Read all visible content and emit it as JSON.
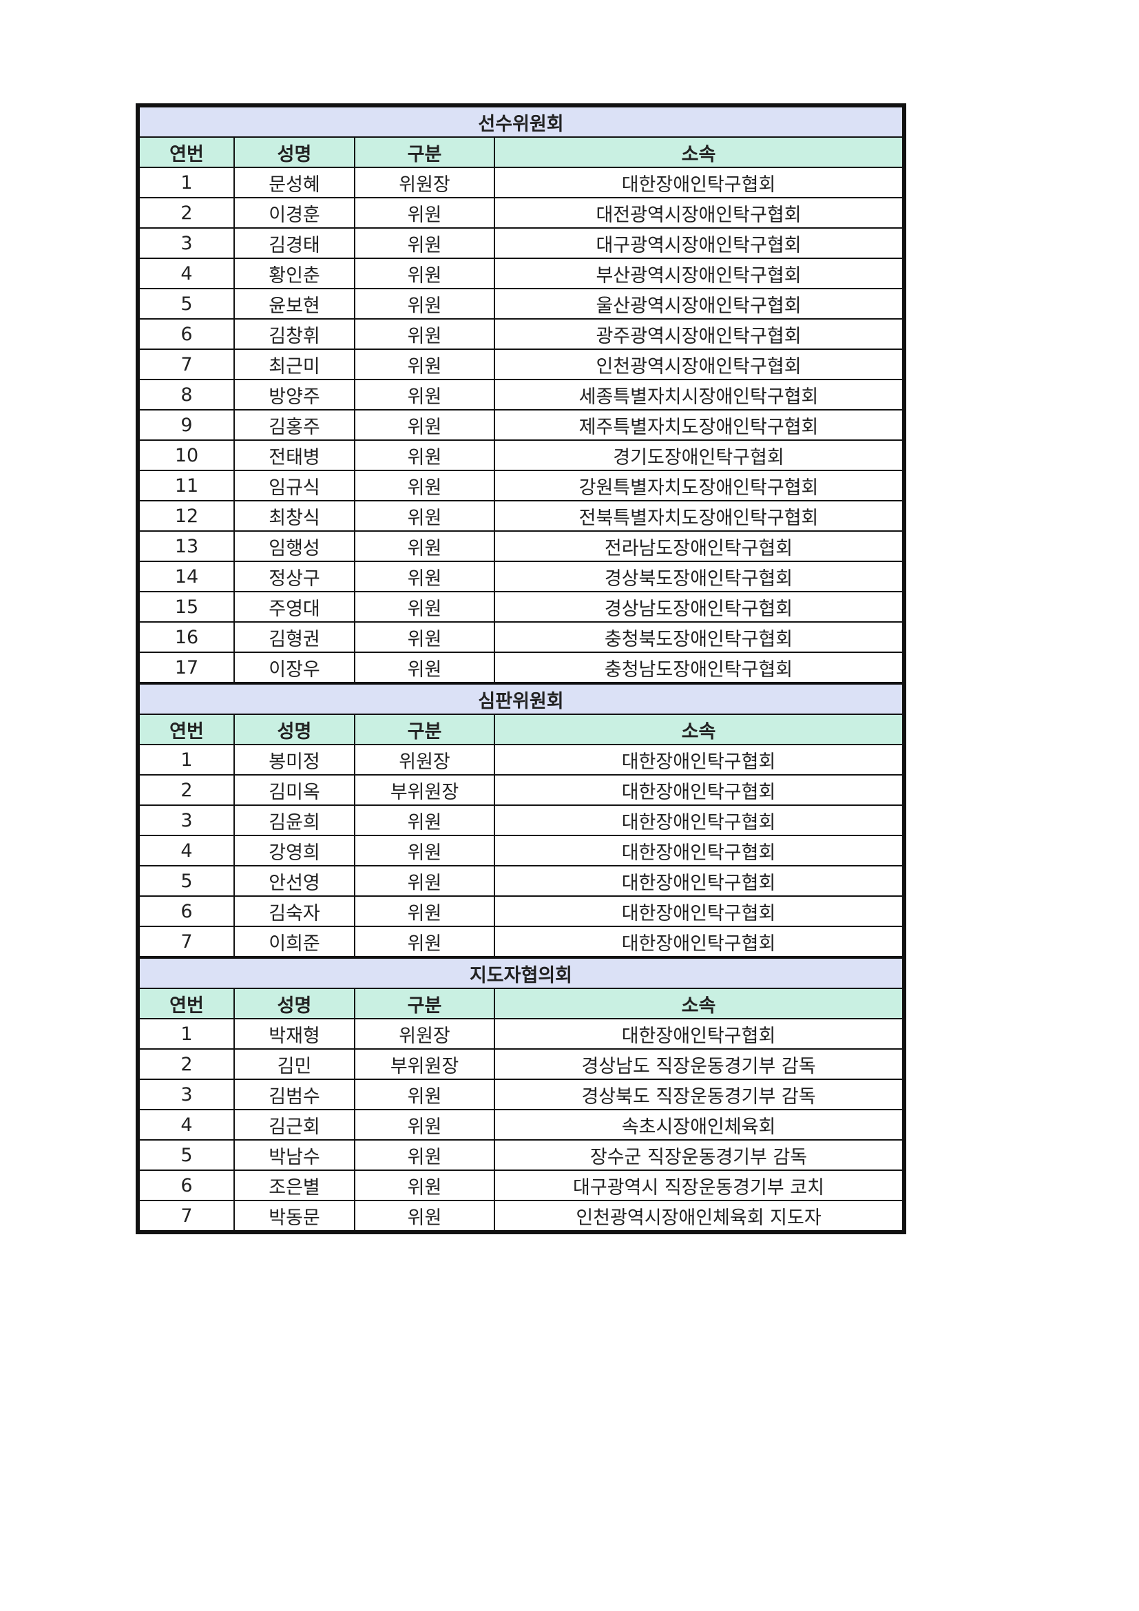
{
  "columns": [
    "연번",
    "성명",
    "구분",
    "소속"
  ],
  "sections": [
    {
      "title": "선수위원회",
      "rows": [
        [
          "1",
          "문성혜",
          "위원장",
          "대한장애인탁구협회"
        ],
        [
          "2",
          "이경훈",
          "위원",
          "대전광역시장애인탁구협회"
        ],
        [
          "3",
          "김경태",
          "위원",
          "대구광역시장애인탁구협회"
        ],
        [
          "4",
          "황인춘",
          "위원",
          "부산광역시장애인탁구협회"
        ],
        [
          "5",
          "윤보현",
          "위원",
          "울산광역시장애인탁구협회"
        ],
        [
          "6",
          "김창휘",
          "위원",
          "광주광역시장애인탁구협회"
        ],
        [
          "7",
          "최근미",
          "위원",
          "인천광역시장애인탁구협회"
        ],
        [
          "8",
          "방양주",
          "위원",
          "세종특별자치시장애인탁구협회"
        ],
        [
          "9",
          "김홍주",
          "위원",
          "제주특별자치도장애인탁구협회"
        ],
        [
          "10",
          "전태병",
          "위원",
          "경기도장애인탁구협회"
        ],
        [
          "11",
          "임규식",
          "위원",
          "강원특별자치도장애인탁구협회"
        ],
        [
          "12",
          "최창식",
          "위원",
          "전북특별자치도장애인탁구협회"
        ],
        [
          "13",
          "임행성",
          "위원",
          "전라남도장애인탁구협회"
        ],
        [
          "14",
          "정상구",
          "위원",
          "경상북도장애인탁구협회"
        ],
        [
          "15",
          "주영대",
          "위원",
          "경상남도장애인탁구협회"
        ],
        [
          "16",
          "김형권",
          "위원",
          "충청북도장애인탁구협회"
        ],
        [
          "17",
          "이장우",
          "위원",
          "충청남도장애인탁구협회"
        ]
      ]
    },
    {
      "title": "심판위원회",
      "rows": [
        [
          "1",
          "봉미정",
          "위원장",
          "대한장애인탁구협회"
        ],
        [
          "2",
          "김미옥",
          "부위원장",
          "대한장애인탁구협회"
        ],
        [
          "3",
          "김윤희",
          "위원",
          "대한장애인탁구협회"
        ],
        [
          "4",
          "강영희",
          "위원",
          "대한장애인탁구협회"
        ],
        [
          "5",
          "안선영",
          "위원",
          "대한장애인탁구협회"
        ],
        [
          "6",
          "김숙자",
          "위원",
          "대한장애인탁구협회"
        ],
        [
          "7",
          "이희준",
          "위원",
          "대한장애인탁구협회"
        ]
      ]
    },
    {
      "title": "지도자협의회",
      "rows": [
        [
          "1",
          "박재형",
          "위원장",
          "대한장애인탁구협회"
        ],
        [
          "2",
          "김민",
          "부위원장",
          "경상남도 직장운동경기부 감독"
        ],
        [
          "3",
          "김범수",
          "위원",
          "경상북도 직장운동경기부 감독"
        ],
        [
          "4",
          "김근회",
          "위원",
          "속초시장애인체육회"
        ],
        [
          "5",
          "박남수",
          "위원",
          "장수군 직장운동경기부 감독"
        ],
        [
          "6",
          "조은별",
          "위원",
          "대구광역시 직장운동경기부 코치"
        ],
        [
          "7",
          "박동문",
          "위원",
          "인천광역시장애인체육회 지도자"
        ]
      ]
    }
  ],
  "colors": {
    "section_bg": "#dbe1f6",
    "header_bg": "#c9f0e2",
    "border": "#111111"
  }
}
